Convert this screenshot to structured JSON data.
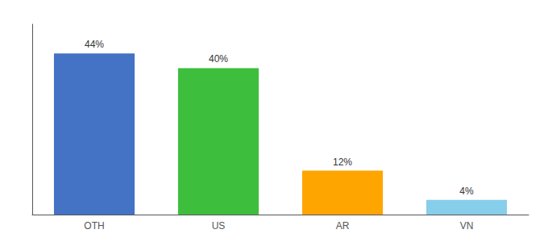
{
  "chart_data": {
    "type": "bar",
    "categories": [
      "OTH",
      "US",
      "AR",
      "VN"
    ],
    "values": [
      44,
      40,
      12,
      4
    ],
    "value_labels": [
      "44%",
      "40%",
      "12%",
      "4%"
    ],
    "colors": [
      "#4472C4",
      "#3DBF3D",
      "#FFA500",
      "#87CEEB"
    ],
    "ylim": [
      0,
      52
    ],
    "grid": false,
    "data_labels": true,
    "tick_labels": "x"
  }
}
